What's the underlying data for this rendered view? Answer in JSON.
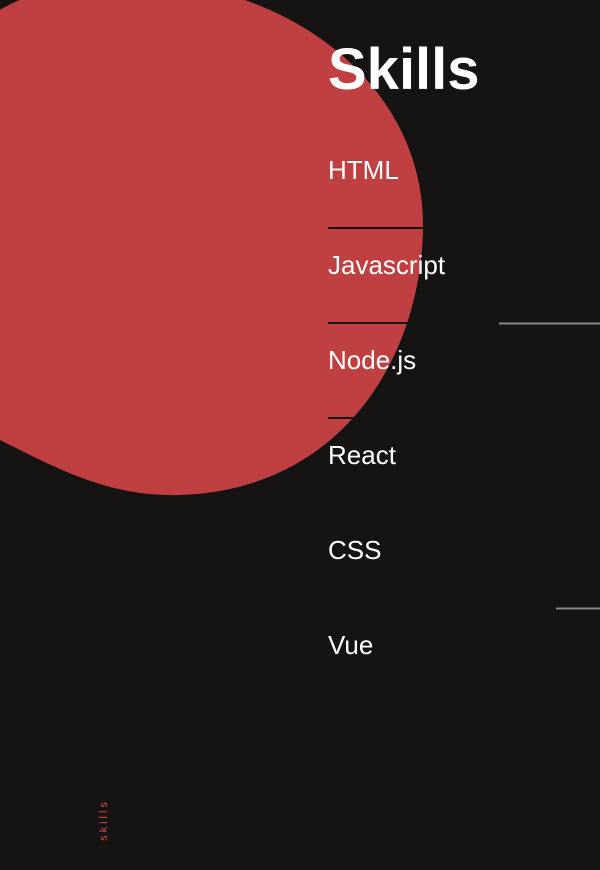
{
  "title": "Skills",
  "skills": [
    "HTML",
    "Javascript",
    "Node.js",
    "React",
    "CSS",
    "Vue"
  ],
  "side_label": "skills"
}
